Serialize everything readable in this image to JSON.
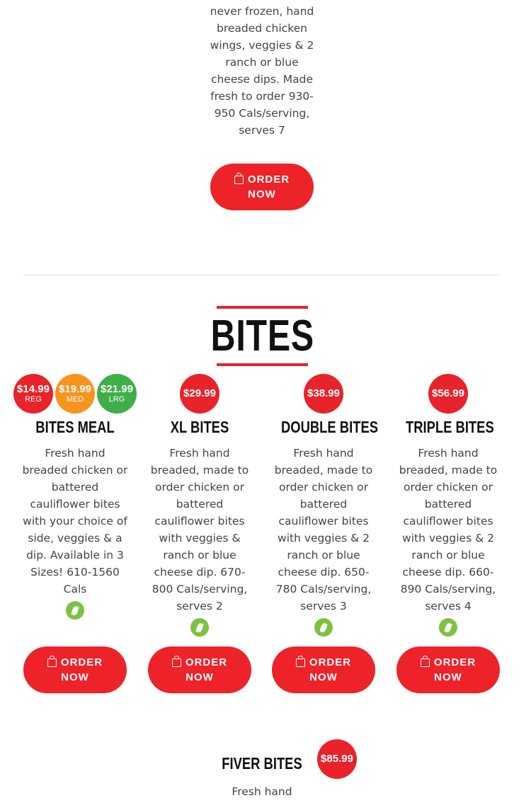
{
  "top_item": {
    "description": "never frozen, hand breaded chicken wings, veggies & 2 ranch or blue cheese dips. Made fresh to order 930-950 Cals/serving, serves 7",
    "button": [
      "ORDER",
      "NOW"
    ]
  },
  "section": {
    "title": "BITES"
  },
  "items": [
    {
      "title": "BITES MEAL",
      "description": "Fresh hand breaded chicken or battered cauliflower bites with your choice of side, veggies & a dip. Available in 3 Sizes! 610-1560 Cals",
      "prices": [
        {
          "price": "$14.99",
          "size": "REG",
          "color": "#e8232a"
        },
        {
          "price": "$19.99",
          "size": "MED",
          "color": "#f7941d"
        },
        {
          "price": "$21.99",
          "size": "LRG",
          "color": "#3fae49"
        }
      ],
      "button": [
        "ORDER",
        "NOW"
      ]
    },
    {
      "title": "XL BITES",
      "description": "Fresh hand breaded, made to order chicken or battered cauliflower bites with veggies & ranch or blue cheese dip. 670-800 Cals/serving, serves 2",
      "prices": [
        {
          "price": "$29.99",
          "color": "#e8232a"
        }
      ],
      "button": [
        "ORDER",
        "NOW"
      ]
    },
    {
      "title": "DOUBLE BITES",
      "description": "Fresh hand breaded, made to order chicken or battered cauliflower bites with veggies & 2 ranch or blue cheese dip. 650-780 Cals/serving, serves 3",
      "prices": [
        {
          "price": "$38.99",
          "color": "#e8232a"
        }
      ],
      "button": [
        "ORDER",
        "NOW"
      ]
    },
    {
      "title": "TRIPLE BITES",
      "description": "Fresh hand breaded, made to order chicken or battered cauliflower bites with veggies & 2 ranch or blue cheese dip. 660-890 Cals/serving, serves 4",
      "prices": [
        {
          "price": "$56.99",
          "color": "#e8232a"
        }
      ],
      "button": [
        "ORDER",
        "NOW"
      ]
    }
  ],
  "fiver": {
    "title": "FIVER BITES",
    "price": "$85.99",
    "description": "Fresh hand"
  },
  "icons": {
    "veg": "leaf-icon",
    "order": "shopping-bag-icon"
  },
  "colors": {
    "accent": "#ee2229",
    "veg": "#7dc242"
  }
}
